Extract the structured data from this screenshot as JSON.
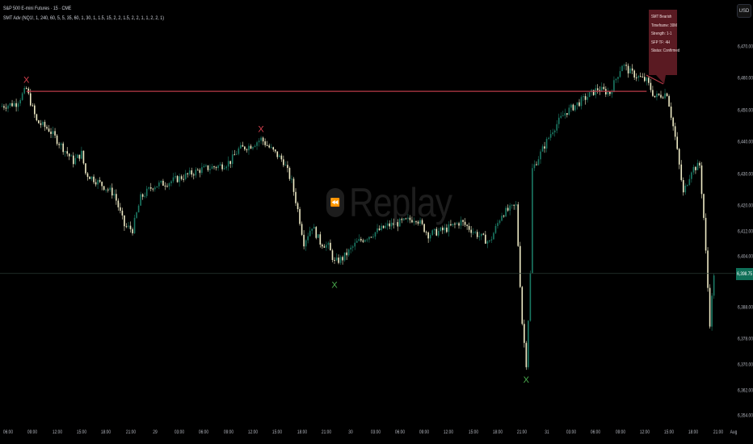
{
  "header": {
    "symbol_line": "S&P 500 E-mini Futures · 15 · CME",
    "indicator_line": "SMT Adv (NQ1!, 1, 240, 60, 5, 5, 35, 60, 1, 30, 1, 1.5, 15, 2, 2, 1.5, 2, 2, 1, 1, 2, 2, 1)"
  },
  "currency_button": "USD",
  "watermark": "Replay",
  "tooltip": {
    "lines": [
      "SMT Bearish",
      "Timeframe: 30M",
      "Strength: 1-1",
      "SFP TF: 4H",
      "Status: Confirmed"
    ]
  },
  "colors": {
    "up_candle": "#1b7a65",
    "down_candle": "#efecc6",
    "bearish_marker": "#d9414f",
    "bullish_marker": "#4caf50",
    "smt_line": "#b83a48",
    "tooltip_bg": "#5a1a22",
    "current_price_bg": "#0f6f58"
  },
  "chart_data": {
    "type": "candlestick",
    "interval": "15",
    "ylim": [
      6354,
      6476
    ],
    "grid": false,
    "y_tick_labels": [
      "6,470.00",
      "6,460.00",
      "6,450.00",
      "6,440.00",
      "6,430.00",
      "6,420.00",
      "6,412.00",
      "6,404.00",
      "6,388.00",
      "6,378.00",
      "6,370.00",
      "6,362.00",
      "6,354.00"
    ],
    "y_tick_values": [
      6470,
      6460,
      6450,
      6440,
      6430,
      6420,
      6412,
      6404,
      6388,
      6378,
      6370,
      6362,
      6354
    ],
    "x_tick_labels": [
      "06:00",
      "09:00",
      "12:00",
      "15:00",
      "18:00",
      "21:00",
      "29",
      "03:00",
      "06:00",
      "09:00",
      "12:00",
      "15:00",
      "18:00",
      "21:00",
      "30",
      "03:00",
      "06:00",
      "09:00",
      "12:00",
      "15:00",
      "18:00",
      "21:00",
      "31",
      "03:00",
      "06:00",
      "09:00",
      "12:00",
      "15:00",
      "18:00",
      "21:00",
      "Aug"
    ],
    "x_tick_times": [
      "Jul 28 06:00",
      "Jul 28 09:00",
      "Jul 28 12:00",
      "Jul 28 15:00",
      "Jul 28 18:00",
      "Jul 28 21:00",
      "Jul 29 00:00",
      "Jul 29 03:00",
      "Jul 29 06:00",
      "Jul 29 09:00",
      "Jul 29 12:00",
      "Jul 29 15:00",
      "Jul 29 18:00",
      "Jul 29 21:00",
      "Jul 30 00:00",
      "Jul 30 03:00",
      "Jul 30 06:00",
      "Jul 30 09:00",
      "Jul 30 12:00",
      "Jul 30 15:00",
      "Jul 30 18:00",
      "Jul 30 21:00",
      "Jul 31 00:00",
      "Jul 31 03:00",
      "Jul 31 06:00",
      "Jul 31 09:00",
      "Jul 31 12:00",
      "Jul 31 15:00",
      "Jul 31 18:00",
      "Jul 31 21:00",
      "Aug 01 00:00"
    ],
    "close_path": [
      [
        "Jul 28 05:00",
        6451.25
      ],
      [
        "Jul 28 07:00",
        6452.25
      ],
      [
        "Jul 28 08:15",
        6456.75
      ],
      [
        "Jul 28 09:30",
        6446.5
      ],
      [
        "Jul 28 11:00",
        6444.0
      ],
      [
        "Jul 28 12:30",
        6439.0
      ],
      [
        "Jul 28 14:00",
        6434.0
      ],
      [
        "Jul 28 15:00",
        6436.5
      ],
      [
        "Jul 28 15:30",
        6430.25
      ],
      [
        "Jul 28 17:00",
        6427.5
      ],
      [
        "Jul 28 19:00",
        6423.75
      ],
      [
        "Jul 28 20:15",
        6413.75
      ],
      [
        "Jul 28 21:15",
        6412.5
      ],
      [
        "Jul 28 22:15",
        6422.5
      ],
      [
        "Jul 28 23:45",
        6426.25
      ],
      [
        "Jul 29 01:45",
        6427.5
      ],
      [
        "Jul 29 03:45",
        6429.5
      ],
      [
        "Jul 29 05:45",
        6431.5
      ],
      [
        "Jul 29 08:15",
        6432.75
      ],
      [
        "Jul 29 09:15",
        6434.0
      ],
      [
        "Jul 29 10:15",
        6437.75
      ],
      [
        "Jul 29 11:45",
        6439.0
      ],
      [
        "Jul 29 13:00",
        6441.0
      ],
      [
        "Jul 29 14:15",
        6437.75
      ],
      [
        "Jul 29 15:45",
        6434.0
      ],
      [
        "Jul 29 16:45",
        6427.5
      ],
      [
        "Jul 29 17:30",
        6418.75
      ],
      [
        "Jul 29 18:15",
        6408.5
      ],
      [
        "Jul 29 19:15",
        6413.75
      ],
      [
        "Jul 29 20:15",
        6408.5
      ],
      [
        "Jul 29 21:15",
        6407.25
      ],
      [
        "Jul 29 22:00",
        6402.25
      ],
      [
        "Jul 29 23:00",
        6403.5
      ],
      [
        "Jul 30 00:45",
        6408.5
      ],
      [
        "Jul 30 02:30",
        6411.0
      ],
      [
        "Jul 30 04:30",
        6413.75
      ],
      [
        "Jul 30 06:30",
        6415.0
      ],
      [
        "Jul 30 08:00",
        6416.25
      ],
      [
        "Jul 30 09:30",
        6411.0
      ],
      [
        "Jul 30 11:30",
        6412.5
      ],
      [
        "Jul 30 13:30",
        6415.0
      ],
      [
        "Jul 30 15:30",
        6411.0
      ],
      [
        "Jul 30 17:00",
        6408.5
      ],
      [
        "Jul 30 18:30",
        6417.5
      ],
      [
        "Jul 30 20:15",
        6420.0
      ],
      [
        "Jul 30 21:00",
        6383.25
      ],
      [
        "Jul 30 21:30",
        6370.5
      ],
      [
        "Jul 30 22:00",
        6398.5
      ],
      [
        "Jul 30 22:15",
        6431.5
      ],
      [
        "Jul 30 23:15",
        6436.5
      ],
      [
        "Jul 31 00:45",
        6444.0
      ],
      [
        "Jul 31 02:15",
        6449.25
      ],
      [
        "Jul 31 04:15",
        6453.0
      ],
      [
        "Jul 31 06:15",
        6456.75
      ],
      [
        "Jul 31 07:45",
        6455.5
      ],
      [
        "Jul 31 09:15",
        6464.5
      ],
      [
        "Jul 31 10:15",
        6462.0
      ],
      [
        "Jul 31 11:15",
        6460.5
      ],
      [
        "Jul 31 12:15",
        6459.25
      ],
      [
        "Jul 31 13:15",
        6454.25
      ],
      [
        "Jul 31 14:45",
        6455.5
      ],
      [
        "Jul 31 15:45",
        6441.5
      ],
      [
        "Jul 31 16:45",
        6423.75
      ],
      [
        "Jul 31 17:45",
        6431.5
      ],
      [
        "Jul 31 18:45",
        6432.75
      ],
      [
        "Jul 31 19:15",
        6416.25
      ],
      [
        "Jul 31 20:00",
        6383.25
      ],
      [
        "Jul 31 20:30",
        6398.75
      ]
    ],
    "current_price": 6398.75,
    "current_price_label": "6,398.75",
    "smt_line": {
      "price": 6456.0,
      "from": "Jul 28 08:15",
      "to": "Jul 31 12:15"
    },
    "markers": [
      {
        "type": "bearish",
        "time": "Jul 28 08:15",
        "price": 6458.25
      },
      {
        "type": "bearish",
        "time": "Jul 29 13:00",
        "price": 6442.75
      },
      {
        "type": "bullish",
        "time": "Jul 29 22:00",
        "price": 6396.5
      },
      {
        "type": "bullish",
        "time": "Jul 30 21:30",
        "price": 6366.75
      }
    ]
  }
}
